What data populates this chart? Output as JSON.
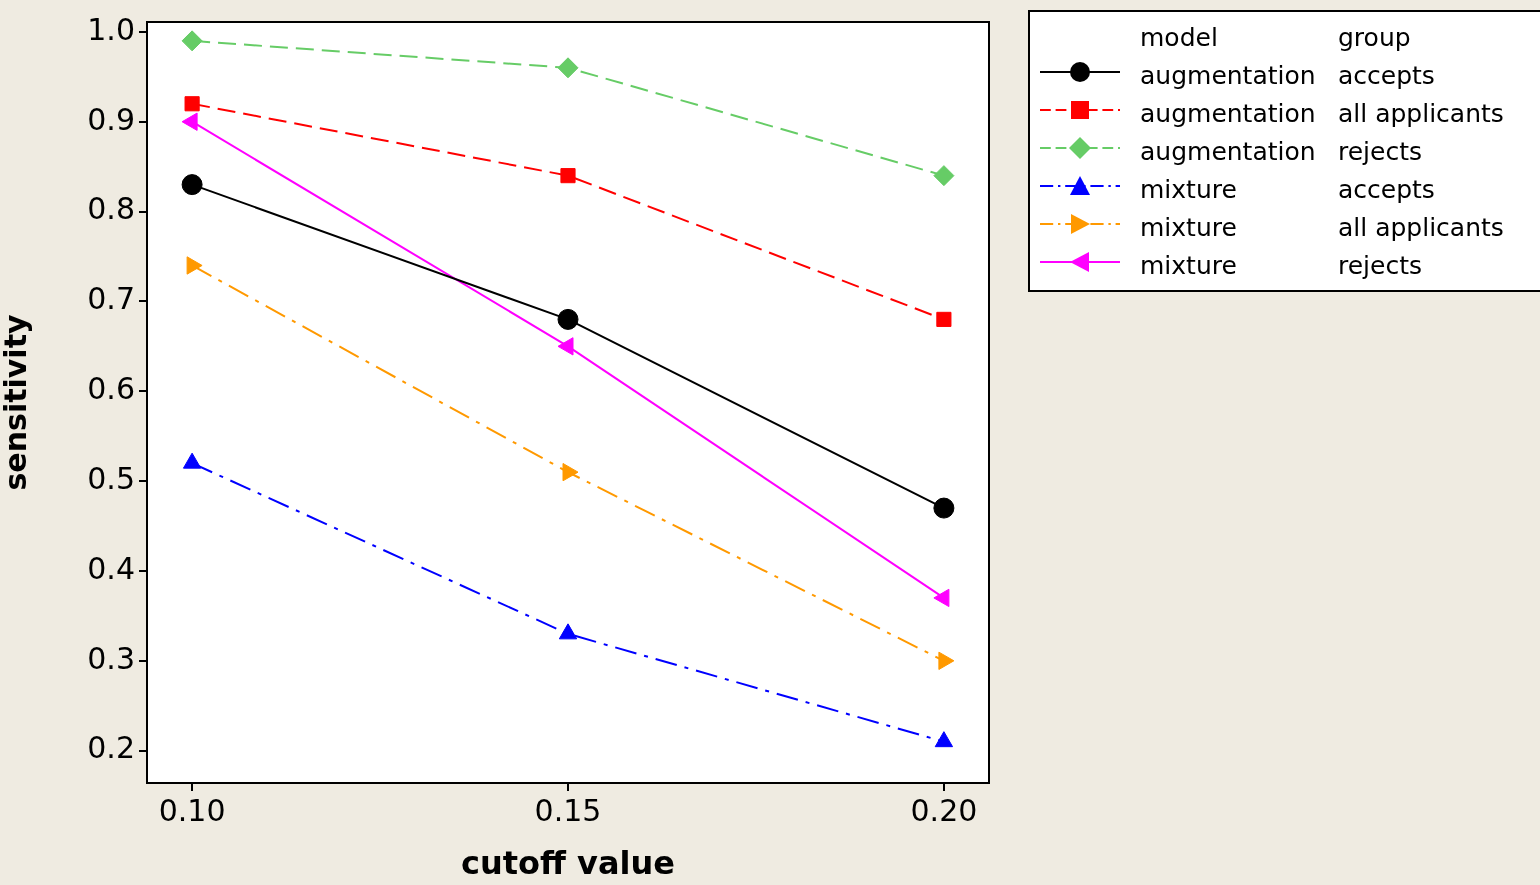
{
  "chart_data": {
    "type": "line",
    "xlabel": "cutoff value",
    "ylabel": "sensitivity",
    "legend_title": "model group",
    "legend": "right",
    "grid": false,
    "xlim": [
      0.094,
      0.206
    ],
    "xticks": [
      {
        "value": 0.1,
        "label": "0.10"
      },
      {
        "value": 0.15,
        "label": "0.15"
      },
      {
        "value": 0.2,
        "label": "0.20"
      }
    ],
    "ylim": [
      0.164,
      1.011
    ],
    "yticks": [
      {
        "value": 0.2,
        "label": "0.2"
      },
      {
        "value": 0.3,
        "label": "0.3"
      },
      {
        "value": 0.4,
        "label": "0.4"
      },
      {
        "value": 0.5,
        "label": "0.5"
      },
      {
        "value": 0.6,
        "label": "0.6"
      },
      {
        "value": 0.7,
        "label": "0.7"
      },
      {
        "value": 0.8,
        "label": "0.8"
      },
      {
        "value": 0.9,
        "label": "0.9"
      },
      {
        "value": 1.0,
        "label": "1.0"
      }
    ],
    "x": [
      0.1,
      0.15,
      0.2
    ],
    "series": [
      {
        "name": "augmentation accepts",
        "color": "#000000",
        "values": [
          0.83,
          0.68,
          0.47
        ],
        "marker": "circle",
        "line_style": "solid"
      },
      {
        "name": "augmentation all applicants",
        "color": "#ff0000",
        "values": [
          0.92,
          0.84,
          0.68
        ],
        "marker": "square",
        "line_style": "dashed"
      },
      {
        "name": "augmentation rejects",
        "color": "#66cc66",
        "values": [
          0.99,
          0.96,
          0.84
        ],
        "marker": "diamond",
        "line_style": "dashed"
      },
      {
        "name": "mixture accepts",
        "color": "#0000ff",
        "values": [
          0.52,
          0.33,
          0.21
        ],
        "marker": "triangle",
        "line_style": "dashdot"
      },
      {
        "name": "mixture all applicants",
        "color": "#ff9900",
        "values": [
          0.74,
          0.51,
          0.3
        ],
        "marker": "triangle-right",
        "line_style": "dashdot"
      },
      {
        "name": "mixture rejects",
        "color": "#ff00ff",
        "values": [
          0.9,
          0.65,
          0.37
        ],
        "marker": "triangle-left",
        "line_style": "solid"
      }
    ]
  }
}
